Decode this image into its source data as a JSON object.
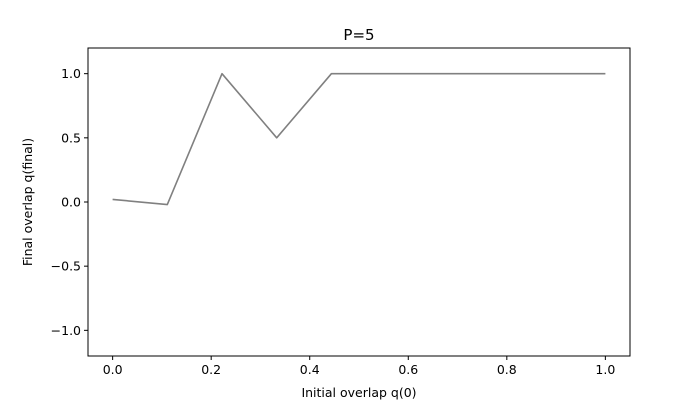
{
  "chart_data": {
    "type": "line",
    "title": "P=5",
    "xlabel": "Initial overlap q(0)",
    "ylabel": "Final overlap q(final)",
    "xlim": [
      -0.05,
      1.05
    ],
    "ylim": [
      -1.2,
      1.2
    ],
    "xticks": [
      0.0,
      0.2,
      0.4,
      0.6,
      0.8,
      1.0
    ],
    "xtick_labels": [
      "0.0",
      "0.2",
      "0.4",
      "0.6",
      "0.8",
      "1.0"
    ],
    "yticks": [
      -1.0,
      -0.5,
      0.0,
      0.5,
      1.0
    ],
    "ytick_labels": [
      "−1.0",
      "−0.5",
      "0.0",
      "0.5",
      "1.0"
    ],
    "grid": false,
    "series": [
      {
        "color": "#808080",
        "x": [
          0.0,
          0.111,
          0.222,
          0.333,
          0.444,
          0.556,
          0.667,
          0.778,
          0.889,
          1.0
        ],
        "y": [
          0.02,
          -0.02,
          1.0,
          0.5,
          1.0,
          1.0,
          1.0,
          1.0,
          1.0,
          1.0
        ]
      }
    ]
  }
}
